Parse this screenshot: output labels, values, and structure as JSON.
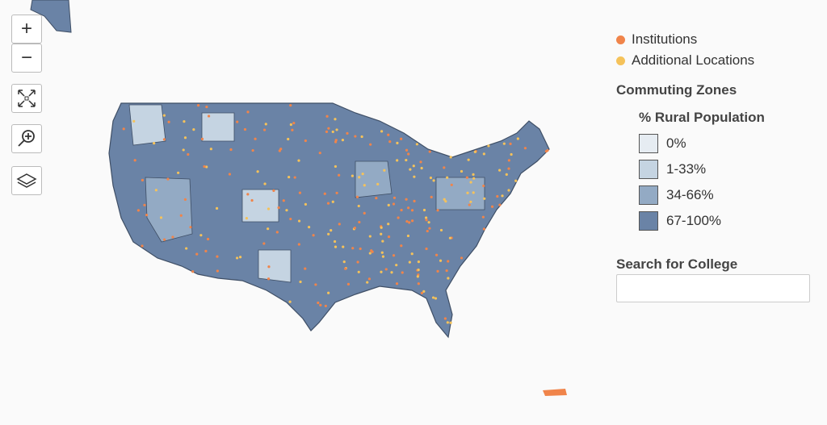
{
  "controls": {
    "zoom_in": "+",
    "zoom_out": "−"
  },
  "legend": {
    "points": [
      {
        "label": "Institutions",
        "color": "#f0844a"
      },
      {
        "label": "Additional Locations",
        "color": "#f5c25a"
      }
    ],
    "zones_title": "Commuting Zones",
    "zones_subtitle": "% Rural Population",
    "classes": [
      {
        "label": "0%",
        "color": "#e6ecf2"
      },
      {
        "label": "1-33%",
        "color": "#c5d4e2"
      },
      {
        "label": "34-66%",
        "color": "#93aac4"
      },
      {
        "label": "67-100%",
        "color": "#6a83a6"
      }
    ]
  },
  "search": {
    "label": "Search for College"
  }
}
